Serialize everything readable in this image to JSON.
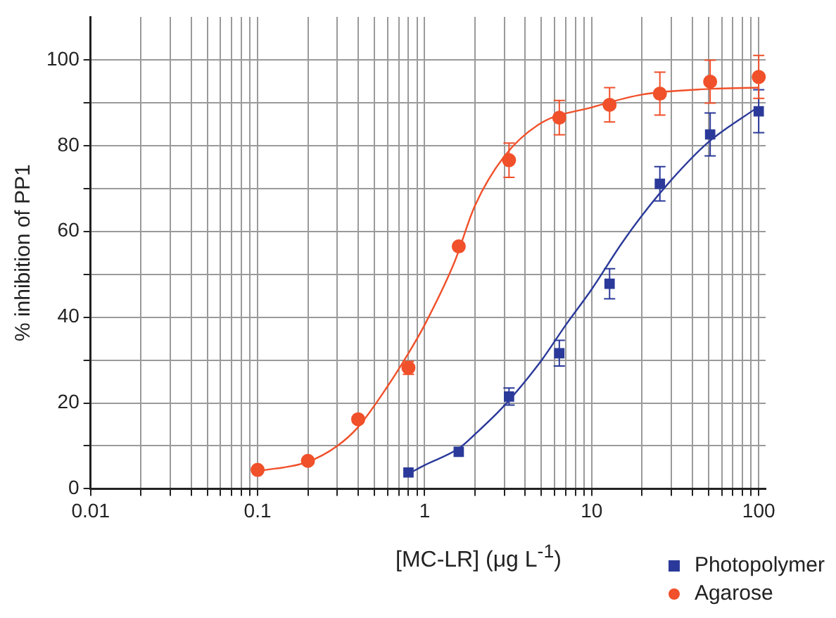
{
  "chart_data": {
    "type": "scatter",
    "xlabel": "[MC-LR] (μg L$^{-1}$)",
    "ylabel": "% inhibition of PP1",
    "log": "x",
    "grid": true,
    "legend": "bottom right",
    "xlim": [
      0.01,
      110
    ],
    "ylim": [
      0,
      110
    ],
    "xticks": [
      0.01,
      {
        "value": 0.02,
        "label": null
      },
      {
        "value": 0.03,
        "label": null
      },
      {
        "value": 0.04,
        "label": null
      },
      {
        "value": 0.05,
        "label": null
      },
      {
        "value": 0.06,
        "label": null
      },
      {
        "value": 0.07,
        "label": null
      },
      {
        "value": 0.08,
        "label": null
      },
      {
        "value": 0.09,
        "label": null
      },
      0.1,
      {
        "value": 0.2,
        "label": null
      },
      {
        "value": 0.3,
        "label": null
      },
      {
        "value": 0.4,
        "label": null
      },
      {
        "value": 0.5,
        "label": null
      },
      {
        "value": 0.6,
        "label": null
      },
      {
        "value": 0.7,
        "label": null
      },
      {
        "value": 0.8,
        "label": null
      },
      {
        "value": 0.9,
        "label": null
      },
      1,
      {
        "value": 2,
        "label": null
      },
      {
        "value": 3,
        "label": null
      },
      {
        "value": 4,
        "label": null
      },
      {
        "value": 5,
        "label": null
      },
      {
        "value": 6,
        "label": null
      },
      {
        "value": 7,
        "label": null
      },
      {
        "value": 8,
        "label": null
      },
      {
        "value": 9,
        "label": null
      },
      10,
      {
        "value": 20,
        "label": null
      },
      {
        "value": 30,
        "label": null
      },
      {
        "value": 40,
        "label": null
      },
      {
        "value": 50,
        "label": null
      },
      {
        "value": 60,
        "label": null
      },
      {
        "value": 70,
        "label": null
      },
      {
        "value": 80,
        "label": null
      },
      {
        "value": 90,
        "label": null
      },
      100
    ],
    "yticks": [
      0,
      {
        "value": 10,
        "label": null
      },
      20,
      {
        "value": 30,
        "label": null
      },
      40,
      {
        "value": 50,
        "label": null
      },
      60,
      {
        "value": 70,
        "label": null
      },
      80,
      {
        "value": 90,
        "label": null
      },
      100
    ],
    "series": [
      {
        "name": "Photopolymer",
        "color": "#2b3a9a",
        "marker": "square",
        "x": [
          0.8,
          1.6,
          3.2,
          6.4,
          12.8,
          25.6,
          51.2,
          100
        ],
        "values": [
          3.8,
          8.6,
          21.5,
          31.6,
          47.8,
          71.1,
          82.6,
          88
        ],
        "errors": [
          null,
          null,
          2,
          3,
          3.5,
          4,
          5,
          5
        ]
      },
      {
        "name": "Agarose",
        "color": "#f0502a",
        "marker": "circle",
        "x": [
          0.1,
          0.2,
          0.4,
          0.8,
          1.6,
          3.2,
          6.4,
          12.8,
          25.6,
          51.2,
          100
        ],
        "values": [
          4.4,
          6.5,
          16.2,
          28.2,
          56.5,
          76.6,
          86.5,
          89.5,
          92.1,
          94.9,
          96
        ],
        "errors": [
          null,
          null,
          null,
          1.5,
          null,
          4,
          4,
          4,
          5,
          5,
          5
        ]
      },
      {
        "type": "line",
        "color": "#2b3a9a",
        "marker": "none",
        "x": [
          0.8,
          1,
          1.6,
          2,
          3,
          5,
          7,
          10,
          15,
          20,
          30,
          50,
          100
        ],
        "values": [
          3.5,
          5.5,
          9.4,
          12.7,
          19.4,
          29.9,
          38.2,
          46.5,
          57,
          63.7,
          72,
          80.8,
          89.1
        ]
      },
      {
        "type": "line",
        "color": "#f0502a",
        "marker": "none",
        "x": [
          0.1,
          0.2,
          0.3,
          0.4,
          0.6,
          0.8,
          1,
          1.5,
          2,
          3,
          5,
          10,
          20,
          50,
          100
        ],
        "values": [
          4.1,
          6.3,
          10,
          14.4,
          23.9,
          31.6,
          38.2,
          52.6,
          66,
          77.5,
          85.3,
          88.9,
          91.9,
          93.2,
          93.5
        ]
      }
    ]
  }
}
